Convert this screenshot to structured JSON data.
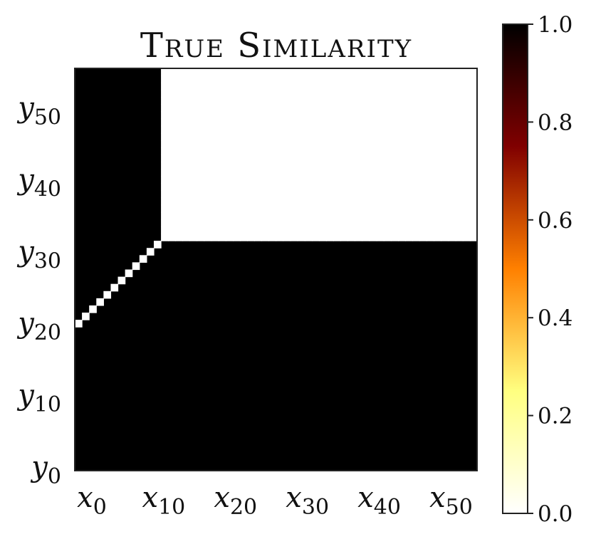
{
  "chart_data": {
    "type": "heatmap",
    "title": "True Similarity",
    "grid_size": 56,
    "x_ticks": [
      {
        "var": "x",
        "sub": "0",
        "index": 0
      },
      {
        "var": "x",
        "sub": "10",
        "index": 10
      },
      {
        "var": "x",
        "sub": "20",
        "index": 20
      },
      {
        "var": "x",
        "sub": "30",
        "index": 30
      },
      {
        "var": "x",
        "sub": "40",
        "index": 40
      },
      {
        "var": "x",
        "sub": "50",
        "index": 50
      }
    ],
    "y_ticks": [
      {
        "var": "y",
        "sub": "0",
        "index": 0
      },
      {
        "var": "y",
        "sub": "10",
        "index": 10
      },
      {
        "var": "y",
        "sub": "20",
        "index": 20
      },
      {
        "var": "y",
        "sub": "30",
        "index": 30
      },
      {
        "var": "y",
        "sub": "40",
        "index": 40
      },
      {
        "var": "y",
        "sub": "50",
        "index": 50
      }
    ],
    "default_value": 1.0,
    "regions": [
      {
        "x_range": [
          12,
          55
        ],
        "y_range": [
          32,
          55
        ],
        "value": 0.0
      }
    ],
    "diagonal_cells": {
      "x_range": [
        0,
        11
      ],
      "y_start": 20,
      "value": 0.0
    },
    "colorbar": {
      "colormap": "afmhot_r",
      "vmin": 0.0,
      "vmax": 1.0,
      "ticks": [
        "0.0",
        "0.2",
        "0.4",
        "0.6",
        "0.8",
        "1.0"
      ],
      "stops": [
        "#ffffff",
        "#ffff80",
        "#ff8000",
        "#800000",
        "#000000"
      ]
    }
  }
}
